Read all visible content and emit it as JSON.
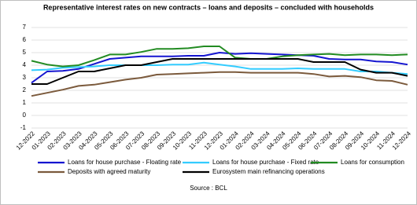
{
  "chart_data": {
    "type": "line",
    "title": "Representative interest rates on new contracts – loans and deposits – concluded with households",
    "source": "Source : BCL",
    "categories": [
      "12-2022",
      "01-2023",
      "02-2023",
      "03-2023",
      "04-2023",
      "05-2023",
      "06-2023",
      "07-2023",
      "08-2023",
      "09-2023",
      "10-2023",
      "11-2023",
      "12-2023",
      "01-2024",
      "02-2024",
      "03-2024",
      "04-2024",
      "05-2024",
      "06-2024",
      "07-2024",
      "08-2024",
      "09-2024",
      "10-2024",
      "11-2024",
      "12-2024"
    ],
    "series": [
      {
        "name": "Loans for house purchase - Floating rate",
        "color": "#1515d0",
        "values": [
          2.6,
          3.5,
          3.55,
          3.7,
          4.1,
          4.5,
          4.6,
          4.7,
          4.7,
          4.7,
          4.75,
          4.75,
          5.0,
          4.9,
          4.95,
          4.9,
          4.85,
          4.8,
          4.75,
          4.5,
          4.45,
          4.45,
          4.3,
          4.25,
          4.05
        ]
      },
      {
        "name": "Loans for house purchase - Fixed rate",
        "color": "#33ccff",
        "values": [
          3.6,
          3.65,
          3.8,
          3.85,
          3.9,
          4.0,
          4.0,
          4.0,
          4.0,
          4.05,
          4.05,
          4.2,
          4.05,
          3.9,
          3.7,
          3.7,
          3.7,
          3.75,
          3.7,
          3.7,
          3.7,
          3.5,
          3.5,
          3.4,
          3.3
        ]
      },
      {
        "name": "Loans for consumption",
        "color": "#228b22",
        "values": [
          4.35,
          4.05,
          3.9,
          4.0,
          4.4,
          4.85,
          4.85,
          5.05,
          5.3,
          5.3,
          5.35,
          5.5,
          5.5,
          4.6,
          4.5,
          4.5,
          4.7,
          4.8,
          4.85,
          4.9,
          4.8,
          4.85,
          4.85,
          4.8,
          4.85
        ]
      },
      {
        "name": "Deposits with agreed maturity",
        "color": "#7b5a3c",
        "values": [
          1.55,
          1.8,
          2.05,
          2.35,
          2.45,
          2.65,
          2.85,
          3.0,
          3.25,
          3.3,
          3.35,
          3.4,
          3.45,
          3.45,
          3.4,
          3.4,
          3.4,
          3.4,
          3.3,
          3.1,
          3.15,
          3.05,
          2.8,
          2.75,
          2.45
        ]
      },
      {
        "name": "Eurosystem main refinancing operations",
        "color": "#000000",
        "values": [
          2.5,
          2.5,
          3.0,
          3.5,
          3.5,
          3.75,
          4.0,
          4.0,
          4.25,
          4.5,
          4.5,
          4.5,
          4.5,
          4.5,
          4.5,
          4.5,
          4.5,
          4.5,
          4.25,
          4.25,
          4.25,
          3.65,
          3.4,
          3.4,
          3.15
        ]
      }
    ],
    "ylim": [
      -1,
      7
    ],
    "yticks": [
      -1,
      0,
      1,
      2,
      3,
      4,
      5,
      6,
      7
    ],
    "grid": true
  }
}
